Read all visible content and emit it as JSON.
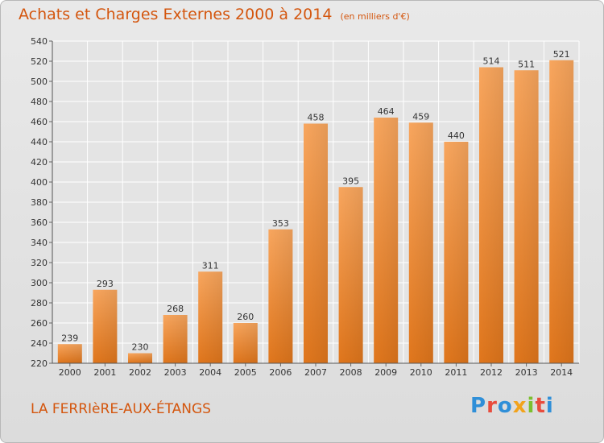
{
  "header": {
    "title": "Achats et Charges Externes 2000 à 2014",
    "unit": "(en milliers d'€)"
  },
  "footer": {
    "commune": "LA FERRIèRE-AUX-ÉTANGS",
    "logo": "Proxiti"
  },
  "colors": {
    "bar_light": "#f7a35c",
    "bar_dark": "#e2781f",
    "title": "#d4560e",
    "grid": "#ffffff",
    "plot_bg": "#e4e4e4"
  },
  "chart_data": {
    "type": "bar",
    "title": "Achats et Charges Externes 2000 à 2014",
    "subtitle": "(en milliers d'€)",
    "xlabel": "",
    "ylabel": "",
    "categories": [
      "2000",
      "2001",
      "2002",
      "2003",
      "2004",
      "2005",
      "2006",
      "2007",
      "2008",
      "2009",
      "2010",
      "2011",
      "2012",
      "2013",
      "2014"
    ],
    "values": [
      239,
      293,
      230,
      268,
      311,
      260,
      353,
      458,
      395,
      464,
      459,
      440,
      514,
      511,
      521
    ],
    "ylim": [
      220,
      540
    ],
    "yticks": [
      220,
      240,
      260,
      280,
      300,
      320,
      340,
      360,
      380,
      400,
      420,
      440,
      460,
      480,
      500,
      520,
      540
    ],
    "grid": true,
    "legend": "none",
    "data_labels": true
  }
}
